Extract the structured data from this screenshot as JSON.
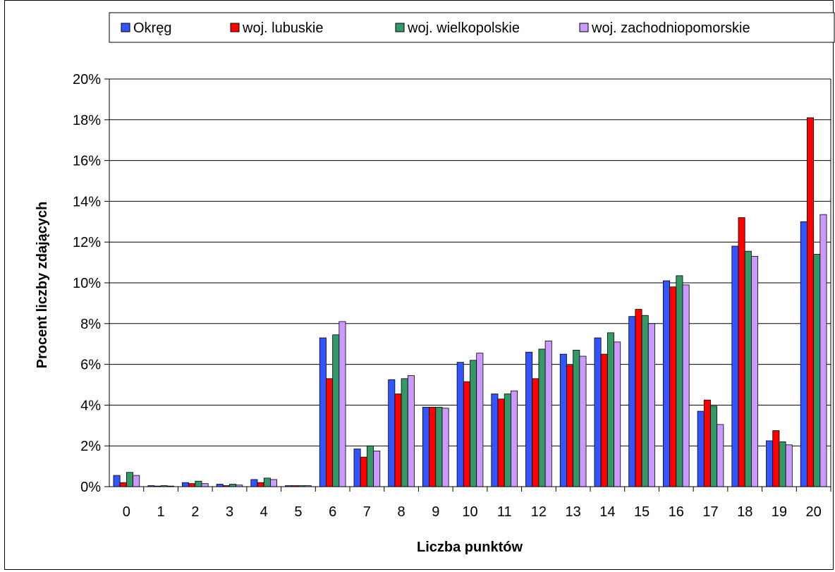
{
  "chart_data": {
    "type": "bar",
    "title": "",
    "xlabel": "Liczba punktów",
    "ylabel": "Procent liczby zdających",
    "ylim": [
      0,
      20
    ],
    "ytick_step": 2,
    "ytick_suffix": "%",
    "grid": true,
    "legend_position": "top",
    "categories": [
      "0",
      "1",
      "2",
      "3",
      "4",
      "5",
      "6",
      "7",
      "8",
      "9",
      "10",
      "11",
      "12",
      "13",
      "14",
      "15",
      "16",
      "17",
      "18",
      "19",
      "20"
    ],
    "series": [
      {
        "name": "Okręg",
        "color": "#3355ff",
        "values": [
          0.55,
          0.05,
          0.2,
          0.12,
          0.35,
          0.05,
          7.3,
          1.85,
          5.25,
          3.9,
          6.1,
          4.55,
          6.6,
          6.5,
          7.3,
          8.35,
          10.1,
          3.7,
          11.8,
          2.25,
          13.0
        ]
      },
      {
        "name": "woj. lubuskie",
        "color": "#ff0000",
        "values": [
          0.2,
          0.03,
          0.15,
          0.05,
          0.2,
          0.05,
          5.3,
          1.45,
          4.55,
          3.9,
          5.15,
          4.3,
          5.3,
          5.95,
          6.5,
          8.7,
          9.8,
          4.25,
          13.2,
          2.75,
          18.1
        ]
      },
      {
        "name": "woj. wielkopolskie",
        "color": "#339966",
        "values": [
          0.7,
          0.05,
          0.27,
          0.12,
          0.42,
          0.05,
          7.45,
          2.0,
          5.3,
          3.9,
          6.2,
          4.55,
          6.75,
          6.7,
          7.55,
          8.4,
          10.35,
          3.95,
          11.55,
          2.2,
          11.4
        ]
      },
      {
        "name": "woj. zachodniopomorskie",
        "color": "#cc99ff",
        "values": [
          0.55,
          0.03,
          0.15,
          0.08,
          0.35,
          0.05,
          8.1,
          1.75,
          5.45,
          3.85,
          6.55,
          4.7,
          7.15,
          6.4,
          7.1,
          8.0,
          9.9,
          3.05,
          11.3,
          2.05,
          13.35
        ]
      }
    ]
  }
}
